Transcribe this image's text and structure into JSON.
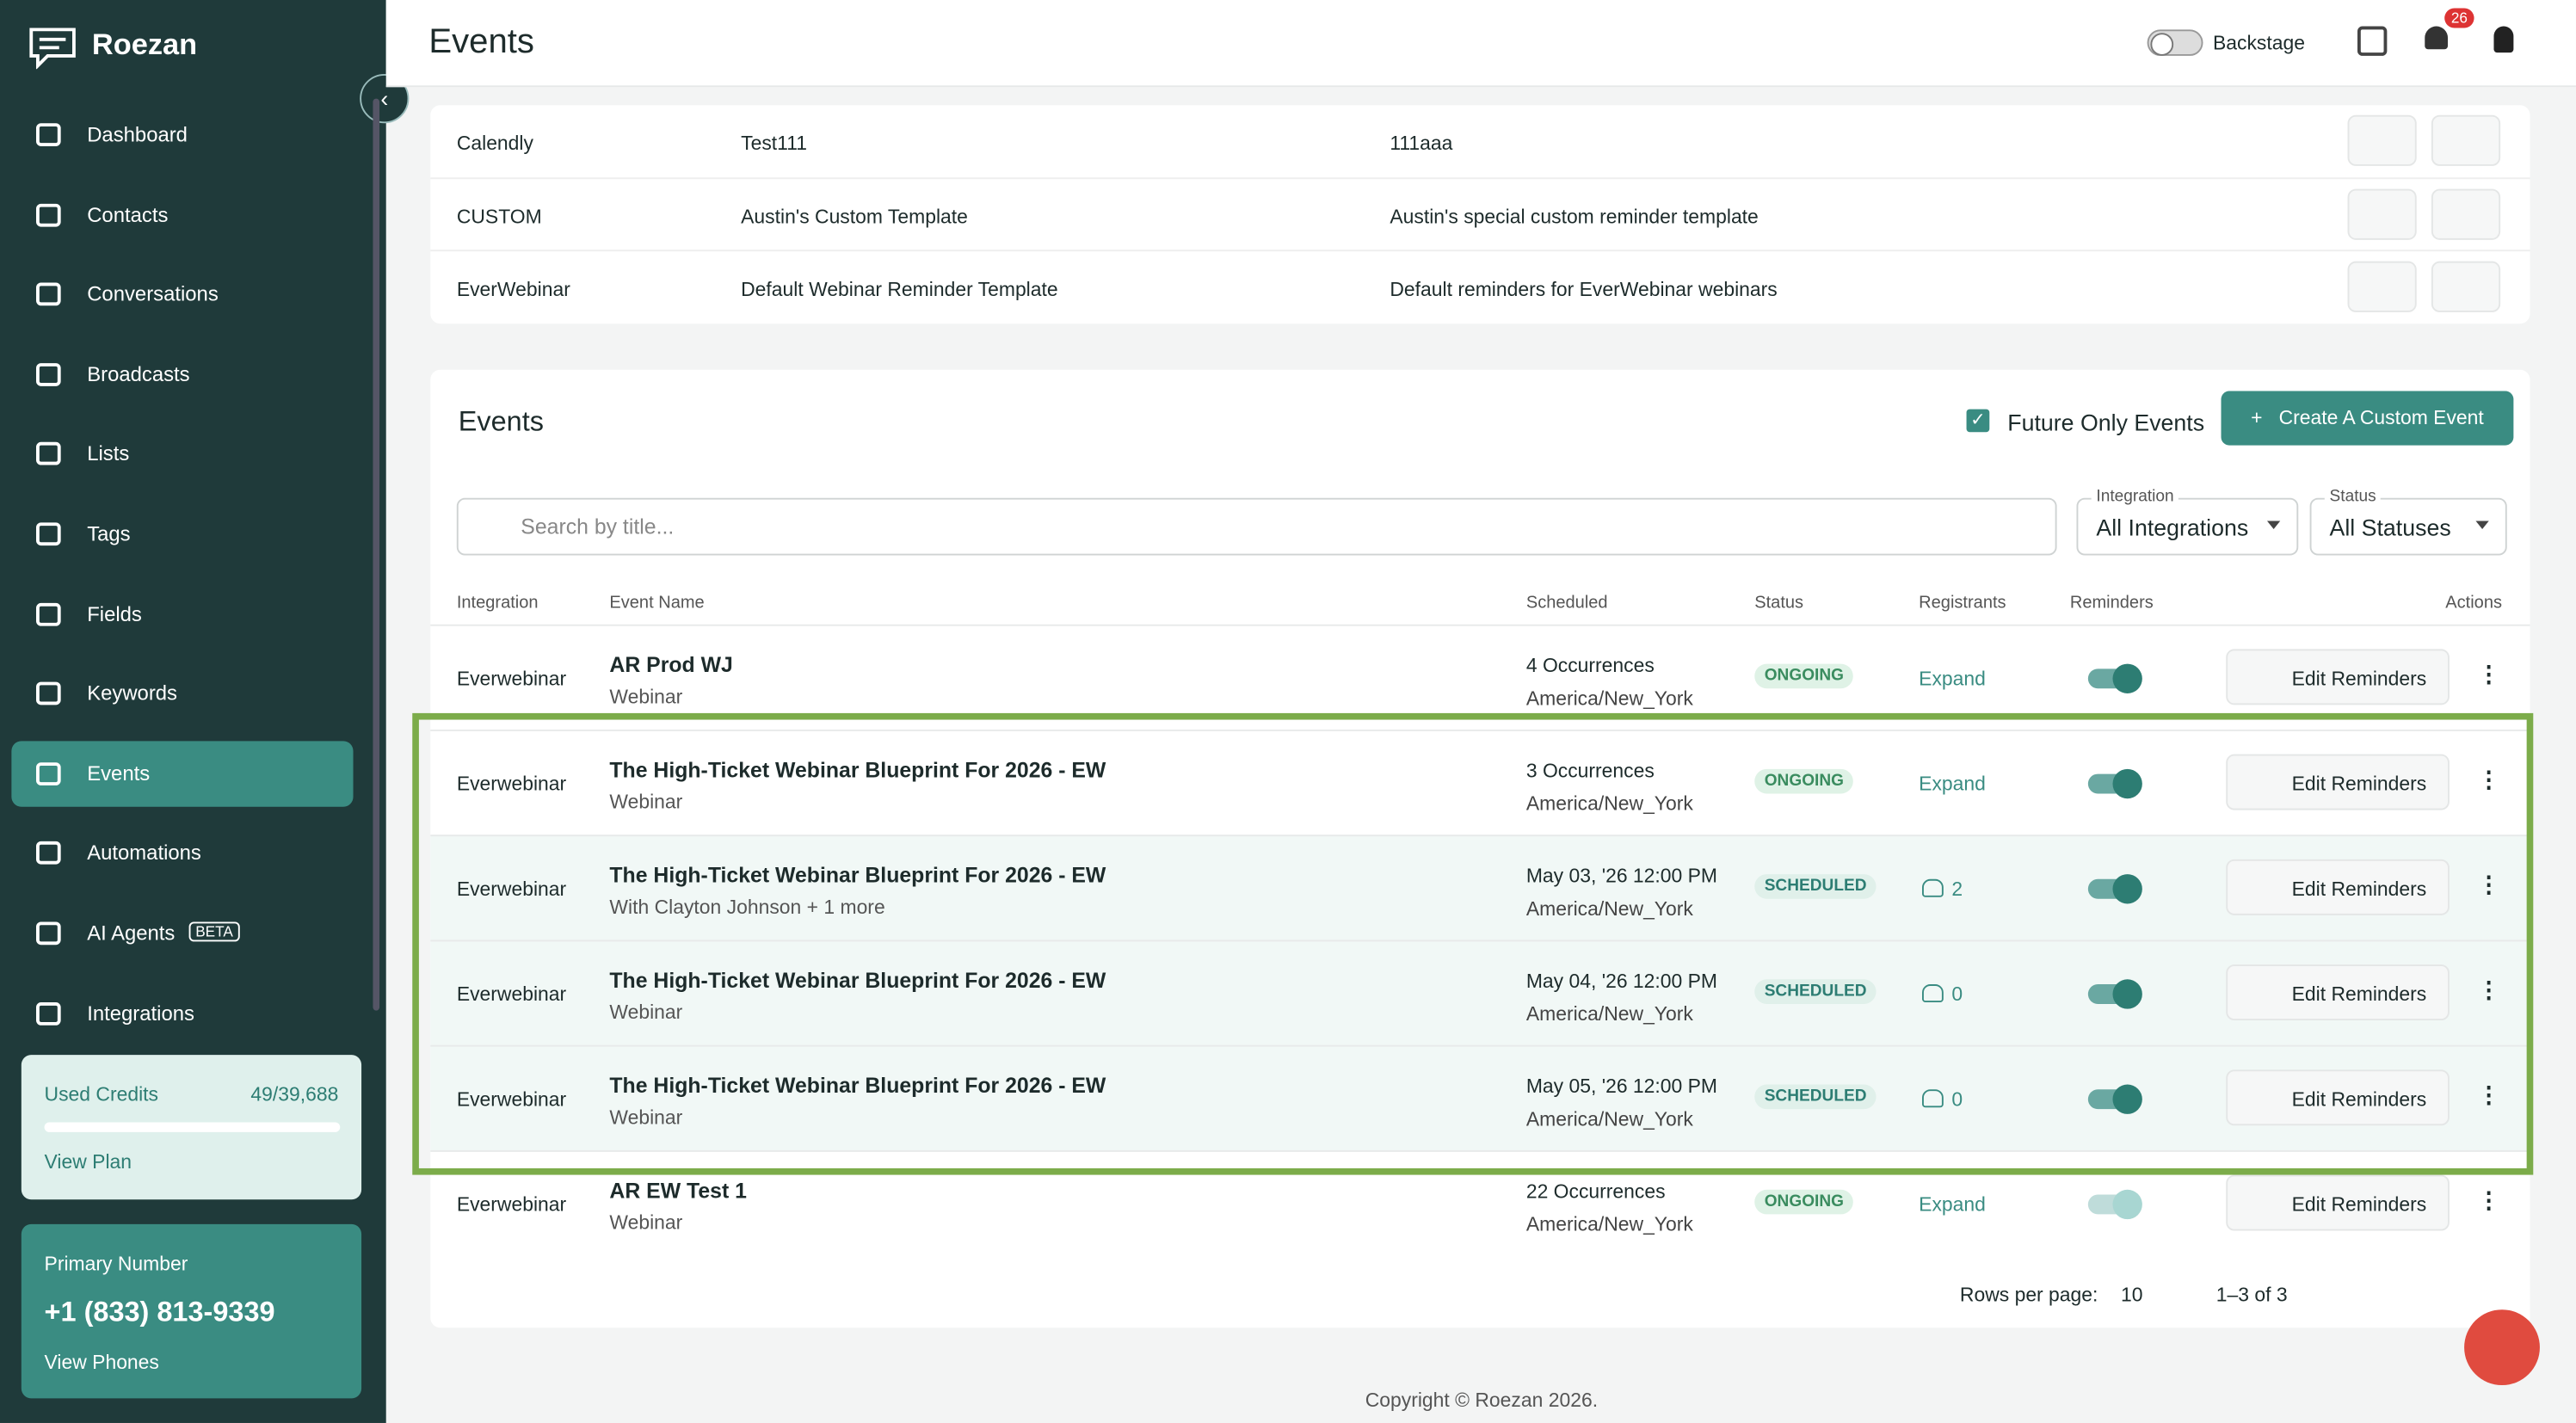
{
  "sidebar": {
    "brand": "Roezan",
    "nav": [
      {
        "label": "Dashboard"
      },
      {
        "label": "Contacts"
      },
      {
        "label": "Conversations"
      },
      {
        "label": "Broadcasts"
      },
      {
        "label": "Lists"
      },
      {
        "label": "Tags"
      },
      {
        "label": "Fields"
      },
      {
        "label": "Keywords"
      },
      {
        "label": "Events"
      },
      {
        "label": "Automations"
      },
      {
        "label": "AI Agents",
        "badge": "BETA"
      },
      {
        "label": "Integrations"
      }
    ],
    "credits": {
      "label": "Used Credits",
      "value": "49/39,688",
      "link": "View Plan"
    },
    "phone": {
      "label": "Primary Number",
      "number": "+1 (833) 813-9339",
      "link": "View Phones"
    }
  },
  "header": {
    "title": "Events",
    "toggle": "Backstage",
    "badge": "26"
  },
  "templates": {
    "rows": [
      [
        "Calendly",
        "Test111",
        "111aaa"
      ],
      [
        "CUSTOM",
        "Austin's Custom Template",
        "Austin's special custom reminder template"
      ],
      [
        "EverWebinar",
        "Default Webinar Reminder Template",
        "Default reminders for EverWebinar webinars"
      ]
    ]
  },
  "events": {
    "title": "Events",
    "filter_check": "Future Only Events",
    "create_button": "Create A Custom Event",
    "search_placeholder": "Search by title...",
    "filters": [
      {
        "label": "Integration",
        "value": "All Integrations"
      },
      {
        "label": "Status",
        "value": "All Statuses"
      }
    ],
    "columns": [
      "Integration",
      "Event Name",
      "Scheduled",
      "Status",
      "Registrants",
      "Reminders",
      "Actions"
    ],
    "rows": [
      {
        "integration": "Everwebinar",
        "name": "AR Prod WJ",
        "sub": "Webinar",
        "sched": "4 Occurrences",
        "tz": "America/New_York",
        "status": "ONGOING",
        "registrants": "Expand",
        "action": "Edit Reminders"
      },
      {
        "integration": "Everwebinar",
        "name": "The High-Ticket Webinar Blueprint For 2026 - EW",
        "sub": "Webinar",
        "sched": "3 Occurrences",
        "tz": "America/New_York",
        "status": "ONGOING",
        "registrants": "Expand",
        "action": "Edit Reminders"
      },
      {
        "integration": "Everwebinar",
        "name": "The High-Ticket Webinar Blueprint For 2026 - EW",
        "sub": "With Clayton Johnson + 1 more",
        "sched": "May 03, '26 12:00 PM",
        "tz": "America/New_York",
        "status": "SCHEDULED",
        "registrants": "2",
        "action": "Edit Reminders"
      },
      {
        "integration": "Everwebinar",
        "name": "The High-Ticket Webinar Blueprint For 2026 - EW",
        "sub": "Webinar",
        "sched": "May 04, '26 12:00 PM",
        "tz": "America/New_York",
        "status": "SCHEDULED",
        "registrants": "0",
        "action": "Edit Reminders"
      },
      {
        "integration": "Everwebinar",
        "name": "The High-Ticket Webinar Blueprint For 2026 - EW",
        "sub": "Webinar",
        "sched": "May 05, '26 12:00 PM",
        "tz": "America/New_York",
        "status": "SCHEDULED",
        "registrants": "0",
        "action": "Edit Reminders"
      },
      {
        "integration": "Everwebinar",
        "name": "AR EW Test 1",
        "sub": "Webinar",
        "sched": "22 Occurrences",
        "tz": "America/New_York",
        "status": "ONGOING",
        "registrants": "Expand",
        "action": "Edit Reminders"
      }
    ],
    "pagination": {
      "rows_label": "Rows per page:",
      "rows_value": "10",
      "range": "1–3 of 3"
    }
  },
  "footer": "Copyright © Roezan 2026."
}
